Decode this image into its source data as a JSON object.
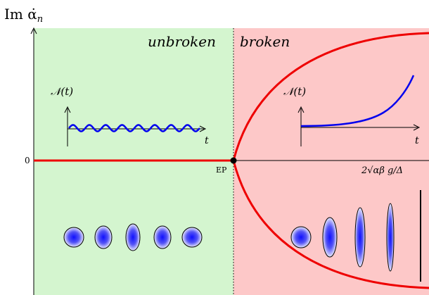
{
  "axes": {
    "y_label": "Im α̇",
    "y_label_sub": "n",
    "zero_tick": "0",
    "ep_label": "EP",
    "threshold_label": "2√αβ g/Δ"
  },
  "regions": {
    "unbroken_label": "unbroken",
    "broken_label": "broken",
    "unbroken_color": "#d4f5cf",
    "broken_color": "#fdc8c8"
  },
  "insets": {
    "left": {
      "y_label": "𝒩(t)",
      "x_label": "t"
    },
    "right": {
      "y_label": "𝒩(t)",
      "x_label": "t"
    }
  },
  "colors": {
    "curve": "#ee0000",
    "inset_line": "#0000ee",
    "ellipse_fill": "#3333ee",
    "axis": "#000000"
  }
}
